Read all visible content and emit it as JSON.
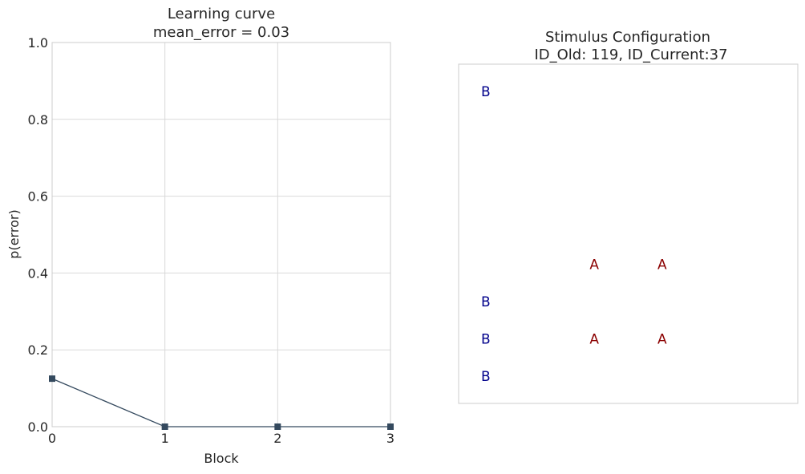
{
  "chart_data": [
    {
      "type": "line",
      "title": "Learning curve",
      "subtitle": "mean_error = 0.03",
      "xlabel": "Block",
      "ylabel": "p(error)",
      "xlim": [
        0,
        3
      ],
      "ylim": [
        0,
        1
      ],
      "x": [
        0,
        1,
        2,
        3
      ],
      "series": [
        {
          "values": [
            0.125,
            0.0,
            0.0,
            0.0
          ]
        }
      ],
      "x_ticks": [
        "0",
        "1",
        "2",
        "3"
      ],
      "y_ticks": [
        "0.0",
        "0.2",
        "0.4",
        "0.6",
        "0.8",
        "1.0"
      ],
      "grid": true,
      "colors": {
        "line": "#34495e",
        "grid": "#d9d9d9",
        "frame": "#cccccc"
      }
    },
    {
      "type": "scatter",
      "title": "Stimulus Configuration",
      "subtitle": "ID_Old: 119, ID_Current:37",
      "xlim": [
        0,
        1
      ],
      "ylim": [
        0,
        1
      ],
      "grid": false,
      "points": [
        {
          "label": "B",
          "x": 0.08,
          "y": 0.92
        },
        {
          "label": "B",
          "x": 0.08,
          "y": 0.3
        },
        {
          "label": "B",
          "x": 0.08,
          "y": 0.19
        },
        {
          "label": "B",
          "x": 0.08,
          "y": 0.08
        },
        {
          "label": "A",
          "x": 0.4,
          "y": 0.41
        },
        {
          "label": "A",
          "x": 0.6,
          "y": 0.41
        },
        {
          "label": "A",
          "x": 0.4,
          "y": 0.19
        },
        {
          "label": "A",
          "x": 0.6,
          "y": 0.19
        }
      ],
      "colors": {
        "A": "#8b0000",
        "B": "#00008b",
        "frame": "#cccccc"
      }
    }
  ]
}
